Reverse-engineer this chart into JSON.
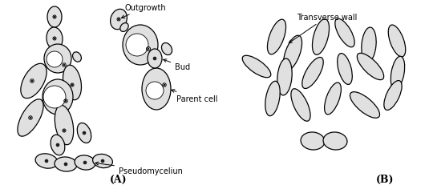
{
  "bg_color": "#ffffff",
  "cell_fill": "#e0e0e0",
  "cell_edge": "#000000",
  "cell_lw": 0.9,
  "label_fontsize": 7.0,
  "letter_fontsize": 9,
  "panel_A_label": "(A)",
  "panel_B_label": "(B)",
  "figsize": [
    5.4,
    2.32
  ],
  "dpi": 100,
  "xlim": [
    0,
    540
  ],
  "ylim": [
    0,
    232
  ]
}
